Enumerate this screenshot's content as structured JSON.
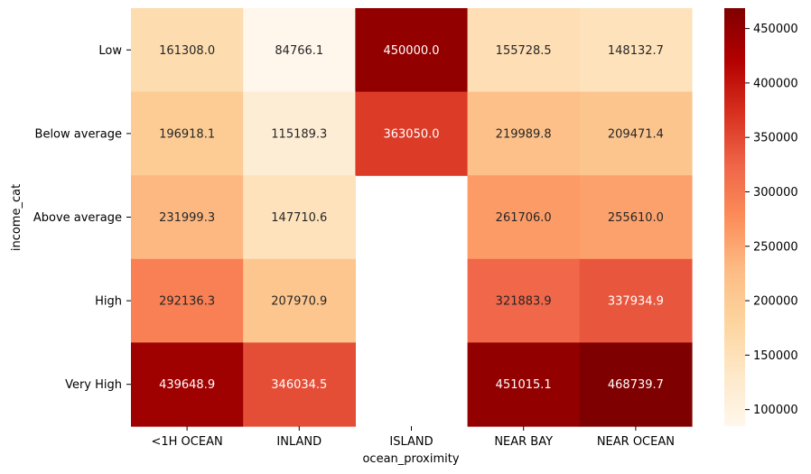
{
  "chart_data": {
    "type": "heatmap",
    "xlabel": "ocean_proximity",
    "ylabel": "income_cat",
    "x_categories": [
      "<1H OCEAN",
      "INLAND",
      "ISLAND",
      "NEAR BAY",
      "NEAR OCEAN"
    ],
    "y_categories": [
      "Low",
      "Below average",
      "Above average",
      "High",
      "Very High"
    ],
    "values": [
      [
        161308.0,
        84766.1,
        450000.0,
        155728.5,
        148132.7
      ],
      [
        196918.1,
        115189.3,
        363050.0,
        219989.8,
        209471.4
      ],
      [
        231999.3,
        147710.6,
        null,
        261706.0,
        255610.0
      ],
      [
        292136.3,
        207970.9,
        null,
        321883.9,
        337934.9
      ],
      [
        439648.9,
        346034.5,
        null,
        451015.1,
        468739.7
      ]
    ],
    "value_labels": [
      [
        "161308.0",
        "84766.1",
        "450000.0",
        "155728.5",
        "148132.7"
      ],
      [
        "196918.1",
        "115189.3",
        "363050.0",
        "219989.8",
        "209471.4"
      ],
      [
        "231999.3",
        "147710.6",
        "",
        "261706.0",
        "255610.0"
      ],
      [
        "292136.3",
        "207970.9",
        "",
        "321883.9",
        "337934.9"
      ],
      [
        "439648.9",
        "346034.5",
        "",
        "451015.1",
        "468739.7"
      ]
    ],
    "colormap": "OrRd",
    "color_range": [
      84766.1,
      468739.7
    ],
    "colorbar_ticks": [
      100000,
      150000,
      200000,
      250000,
      300000,
      350000,
      400000,
      450000
    ],
    "colorbar_tick_labels": [
      "100000",
      "150000",
      "200000",
      "250000",
      "300000",
      "350000",
      "400000",
      "450000"
    ]
  }
}
